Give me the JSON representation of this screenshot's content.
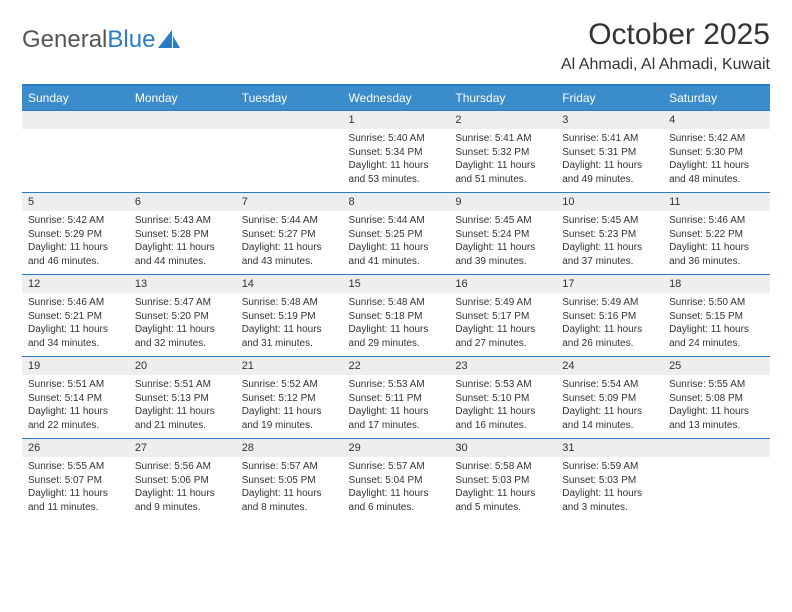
{
  "logo": {
    "part1": "General",
    "part2": "Blue"
  },
  "title": "October 2025",
  "location": "Al Ahmadi, Al Ahmadi, Kuwait",
  "day_headers": [
    "Sunday",
    "Monday",
    "Tuesday",
    "Wednesday",
    "Thursday",
    "Friday",
    "Saturday"
  ],
  "colors": {
    "header_bg": "#3b8ccb",
    "header_border": "#2b7cc2",
    "daynum_bg": "#eceeef",
    "text": "#333333",
    "logo_gray": "#555555",
    "logo_blue": "#2b7cc2"
  },
  "weeks": [
    [
      {
        "d": "",
        "sr": "",
        "ss": "",
        "dl": ""
      },
      {
        "d": "",
        "sr": "",
        "ss": "",
        "dl": ""
      },
      {
        "d": "",
        "sr": "",
        "ss": "",
        "dl": ""
      },
      {
        "d": "1",
        "sr": "Sunrise: 5:40 AM",
        "ss": "Sunset: 5:34 PM",
        "dl": "Daylight: 11 hours and 53 minutes."
      },
      {
        "d": "2",
        "sr": "Sunrise: 5:41 AM",
        "ss": "Sunset: 5:32 PM",
        "dl": "Daylight: 11 hours and 51 minutes."
      },
      {
        "d": "3",
        "sr": "Sunrise: 5:41 AM",
        "ss": "Sunset: 5:31 PM",
        "dl": "Daylight: 11 hours and 49 minutes."
      },
      {
        "d": "4",
        "sr": "Sunrise: 5:42 AM",
        "ss": "Sunset: 5:30 PM",
        "dl": "Daylight: 11 hours and 48 minutes."
      }
    ],
    [
      {
        "d": "5",
        "sr": "Sunrise: 5:42 AM",
        "ss": "Sunset: 5:29 PM",
        "dl": "Daylight: 11 hours and 46 minutes."
      },
      {
        "d": "6",
        "sr": "Sunrise: 5:43 AM",
        "ss": "Sunset: 5:28 PM",
        "dl": "Daylight: 11 hours and 44 minutes."
      },
      {
        "d": "7",
        "sr": "Sunrise: 5:44 AM",
        "ss": "Sunset: 5:27 PM",
        "dl": "Daylight: 11 hours and 43 minutes."
      },
      {
        "d": "8",
        "sr": "Sunrise: 5:44 AM",
        "ss": "Sunset: 5:25 PM",
        "dl": "Daylight: 11 hours and 41 minutes."
      },
      {
        "d": "9",
        "sr": "Sunrise: 5:45 AM",
        "ss": "Sunset: 5:24 PM",
        "dl": "Daylight: 11 hours and 39 minutes."
      },
      {
        "d": "10",
        "sr": "Sunrise: 5:45 AM",
        "ss": "Sunset: 5:23 PM",
        "dl": "Daylight: 11 hours and 37 minutes."
      },
      {
        "d": "11",
        "sr": "Sunrise: 5:46 AM",
        "ss": "Sunset: 5:22 PM",
        "dl": "Daylight: 11 hours and 36 minutes."
      }
    ],
    [
      {
        "d": "12",
        "sr": "Sunrise: 5:46 AM",
        "ss": "Sunset: 5:21 PM",
        "dl": "Daylight: 11 hours and 34 minutes."
      },
      {
        "d": "13",
        "sr": "Sunrise: 5:47 AM",
        "ss": "Sunset: 5:20 PM",
        "dl": "Daylight: 11 hours and 32 minutes."
      },
      {
        "d": "14",
        "sr": "Sunrise: 5:48 AM",
        "ss": "Sunset: 5:19 PM",
        "dl": "Daylight: 11 hours and 31 minutes."
      },
      {
        "d": "15",
        "sr": "Sunrise: 5:48 AM",
        "ss": "Sunset: 5:18 PM",
        "dl": "Daylight: 11 hours and 29 minutes."
      },
      {
        "d": "16",
        "sr": "Sunrise: 5:49 AM",
        "ss": "Sunset: 5:17 PM",
        "dl": "Daylight: 11 hours and 27 minutes."
      },
      {
        "d": "17",
        "sr": "Sunrise: 5:49 AM",
        "ss": "Sunset: 5:16 PM",
        "dl": "Daylight: 11 hours and 26 minutes."
      },
      {
        "d": "18",
        "sr": "Sunrise: 5:50 AM",
        "ss": "Sunset: 5:15 PM",
        "dl": "Daylight: 11 hours and 24 minutes."
      }
    ],
    [
      {
        "d": "19",
        "sr": "Sunrise: 5:51 AM",
        "ss": "Sunset: 5:14 PM",
        "dl": "Daylight: 11 hours and 22 minutes."
      },
      {
        "d": "20",
        "sr": "Sunrise: 5:51 AM",
        "ss": "Sunset: 5:13 PM",
        "dl": "Daylight: 11 hours and 21 minutes."
      },
      {
        "d": "21",
        "sr": "Sunrise: 5:52 AM",
        "ss": "Sunset: 5:12 PM",
        "dl": "Daylight: 11 hours and 19 minutes."
      },
      {
        "d": "22",
        "sr": "Sunrise: 5:53 AM",
        "ss": "Sunset: 5:11 PM",
        "dl": "Daylight: 11 hours and 17 minutes."
      },
      {
        "d": "23",
        "sr": "Sunrise: 5:53 AM",
        "ss": "Sunset: 5:10 PM",
        "dl": "Daylight: 11 hours and 16 minutes."
      },
      {
        "d": "24",
        "sr": "Sunrise: 5:54 AM",
        "ss": "Sunset: 5:09 PM",
        "dl": "Daylight: 11 hours and 14 minutes."
      },
      {
        "d": "25",
        "sr": "Sunrise: 5:55 AM",
        "ss": "Sunset: 5:08 PM",
        "dl": "Daylight: 11 hours and 13 minutes."
      }
    ],
    [
      {
        "d": "26",
        "sr": "Sunrise: 5:55 AM",
        "ss": "Sunset: 5:07 PM",
        "dl": "Daylight: 11 hours and 11 minutes."
      },
      {
        "d": "27",
        "sr": "Sunrise: 5:56 AM",
        "ss": "Sunset: 5:06 PM",
        "dl": "Daylight: 11 hours and 9 minutes."
      },
      {
        "d": "28",
        "sr": "Sunrise: 5:57 AM",
        "ss": "Sunset: 5:05 PM",
        "dl": "Daylight: 11 hours and 8 minutes."
      },
      {
        "d": "29",
        "sr": "Sunrise: 5:57 AM",
        "ss": "Sunset: 5:04 PM",
        "dl": "Daylight: 11 hours and 6 minutes."
      },
      {
        "d": "30",
        "sr": "Sunrise: 5:58 AM",
        "ss": "Sunset: 5:03 PM",
        "dl": "Daylight: 11 hours and 5 minutes."
      },
      {
        "d": "31",
        "sr": "Sunrise: 5:59 AM",
        "ss": "Sunset: 5:03 PM",
        "dl": "Daylight: 11 hours and 3 minutes."
      },
      {
        "d": "",
        "sr": "",
        "ss": "",
        "dl": ""
      }
    ]
  ]
}
